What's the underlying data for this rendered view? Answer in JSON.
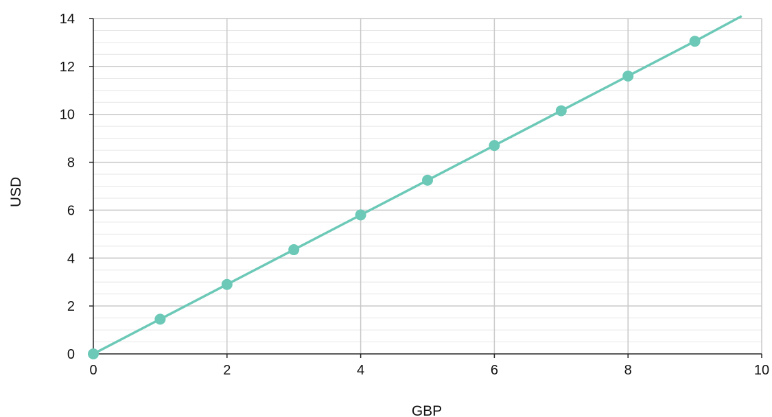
{
  "chart_data": {
    "type": "line",
    "title": "",
    "xlabel": "GBP",
    "ylabel": "USD",
    "xlim": [
      0,
      10
    ],
    "ylim": [
      0,
      14
    ],
    "x_ticks": [
      "0",
      "2",
      "4",
      "6",
      "8",
      "10"
    ],
    "y_ticks": [
      "0",
      "2",
      "4",
      "6",
      "8",
      "10",
      "12",
      "14"
    ],
    "grid": true,
    "legend": "none",
    "line_extends_to": {
      "x": 9.7,
      "y": 14.1
    },
    "series": [
      {
        "x": [
          0,
          1,
          2,
          3,
          4,
          5,
          6,
          7,
          8,
          9
        ],
        "y": [
          0,
          1.45,
          2.9,
          4.35,
          5.8,
          7.25,
          8.7,
          10.15,
          11.6,
          13.05
        ],
        "color": "#6cc9b7"
      }
    ]
  }
}
